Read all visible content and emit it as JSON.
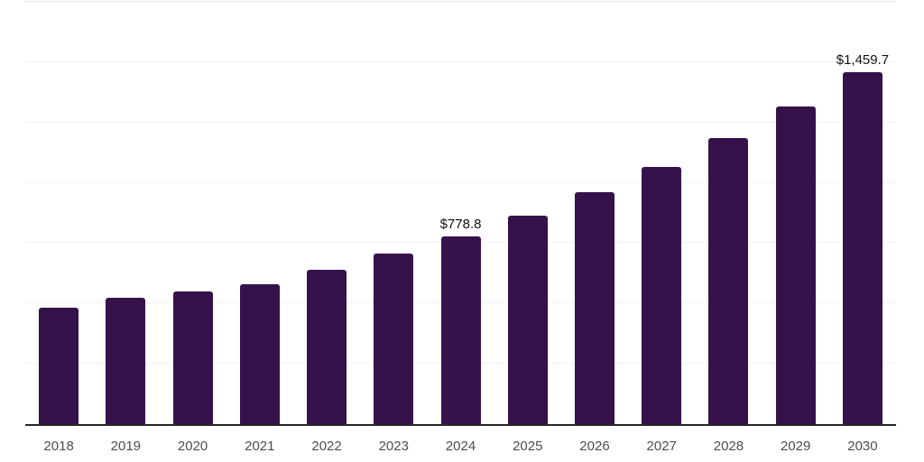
{
  "chart_data": {
    "type": "bar",
    "title": "",
    "xlabel": "",
    "ylabel": "",
    "categories": [
      "2018",
      "2019",
      "2020",
      "2021",
      "2022",
      "2023",
      "2024",
      "2025",
      "2026",
      "2027",
      "2028",
      "2029",
      "2030"
    ],
    "values": [
      482.0,
      524.0,
      550.0,
      580.0,
      638.0,
      706.5,
      778.8,
      864.8,
      960.3,
      1066.3,
      1184.0,
      1314.7,
      1459.7
    ],
    "bar_labels": [
      "",
      "",
      "",
      "",
      "",
      "",
      "$778.8",
      "",
      "",
      "",
      "",
      "",
      "$1,459.7"
    ],
    "ylim": [
      0,
      1750
    ],
    "grid_step": 250,
    "grid": "horizontal",
    "legend_position": "none",
    "y_tick_labels_visible": false,
    "colors": {
      "bar": "#36124B",
      "axis_line": "#262626",
      "gridline": "#f3f3f3",
      "top_gridline": "#e4e4e4",
      "data_label": "#111111",
      "tick_label": "#4d4d4d",
      "background": "#ffffff"
    }
  }
}
